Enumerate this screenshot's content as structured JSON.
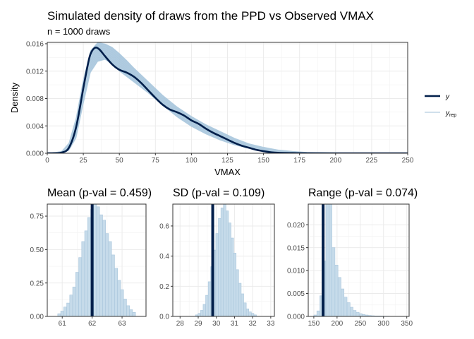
{
  "title": "Simulated density of draws from the PPD vs Observed VMAX",
  "subtitle": "n = 1000 draws",
  "colors": {
    "observed": "#011f4b",
    "replicated": "#b3cde0",
    "rep_density": "#9fbfd9",
    "hist_fill": "#c6dbea",
    "hist_edge": "#a9c6dc",
    "grid": "#ebebeb",
    "panel_border": "#333333",
    "axis_text": "#4d4d4d"
  },
  "chart_data": [
    {
      "type": "line",
      "name": "density_overlay",
      "xlabel": "VMAX",
      "ylabel": "Density",
      "xlim": [
        0,
        250
      ],
      "ylim": [
        0,
        0.0162
      ],
      "xticks": [
        0,
        25,
        50,
        75,
        100,
        125,
        150,
        175,
        200,
        225,
        250
      ],
      "xtick_labels": [
        "0",
        "25",
        "50",
        "75",
        "100",
        "125",
        "150",
        "175",
        "200",
        "225",
        "250"
      ],
      "yticks": [
        0,
        0.004,
        0.008,
        0.012,
        0.016
      ],
      "ytick_labels": [
        "0.000",
        "0.004",
        "0.008",
        "0.012",
        "0.016"
      ],
      "grid": true,
      "legend": {
        "position": "right",
        "items": [
          {
            "label": "y",
            "style": "observed"
          },
          {
            "label": "y",
            "sub": "rep",
            "style": "replicated"
          }
        ]
      },
      "observed": {
        "x": [
          0,
          5,
          10,
          15,
          20,
          25,
          28,
          30,
          33,
          36,
          40,
          45,
          50,
          55,
          60,
          65,
          70,
          75,
          80,
          85,
          90,
          95,
          100,
          105,
          110,
          115,
          120,
          125,
          130,
          135,
          140,
          145,
          150,
          155,
          160,
          170,
          180,
          200,
          225,
          250
        ],
        "y": [
          0.0,
          2e-05,
          0.0001,
          0.0008,
          0.0038,
          0.0095,
          0.0128,
          0.0145,
          0.0154,
          0.0152,
          0.0142,
          0.013,
          0.0122,
          0.0118,
          0.0112,
          0.0103,
          0.0092,
          0.0081,
          0.0071,
          0.0064,
          0.006,
          0.0055,
          0.0048,
          0.0043,
          0.0036,
          0.003,
          0.0025,
          0.002,
          0.0015,
          0.0011,
          0.0008,
          0.0005,
          0.0003,
          0.00015,
          7e-05,
          3e-05,
          1e-05,
          0.0,
          0.0,
          0.0
        ]
      },
      "replicated_band": {
        "x": [
          0,
          5,
          10,
          15,
          20,
          25,
          30,
          35,
          40,
          45,
          50,
          55,
          60,
          70,
          80,
          90,
          100,
          110,
          120,
          130,
          140,
          150,
          160,
          170,
          180,
          200,
          250
        ],
        "upper": [
          0.0,
          0.0001,
          0.0003,
          0.0015,
          0.0052,
          0.0108,
          0.015,
          0.0162,
          0.016,
          0.0155,
          0.0146,
          0.0136,
          0.0125,
          0.0105,
          0.0085,
          0.0068,
          0.0054,
          0.0042,
          0.0032,
          0.0022,
          0.0014,
          0.0009,
          0.0005,
          0.0003,
          0.00015,
          5e-05,
          0.0
        ],
        "lower": [
          0.0,
          0.0,
          5e-05,
          0.0004,
          0.0022,
          0.0072,
          0.0118,
          0.0134,
          0.0137,
          0.013,
          0.012,
          0.0112,
          0.0104,
          0.0088,
          0.007,
          0.0053,
          0.0039,
          0.0028,
          0.0019,
          0.0012,
          0.0007,
          0.0003,
          0.0001,
          3e-05,
          0.0,
          0.0,
          0.0
        ]
      }
    },
    {
      "type": "bar",
      "name": "hist_mean",
      "title": "Mean (p-val = 0.459)",
      "xlim": [
        60.5,
        63.8
      ],
      "ylim": [
        0,
        0.84
      ],
      "xticks": [
        61,
        62,
        63
      ],
      "xtick_labels": [
        "61",
        "62",
        "63"
      ],
      "yticks": [
        0,
        0.25,
        0.5,
        0.75
      ],
      "ytick_labels": [
        "0.00",
        "0.25",
        "0.50",
        "0.75"
      ],
      "grid": true,
      "bin_start": 60.85,
      "bin_width": 0.1,
      "values": [
        0.02,
        0.04,
        0.07,
        0.1,
        0.16,
        0.22,
        0.33,
        0.44,
        0.56,
        0.64,
        0.74,
        0.8,
        0.84,
        0.82,
        0.76,
        0.72,
        0.62,
        0.56,
        0.46,
        0.36,
        0.27,
        0.2,
        0.13,
        0.08,
        0.05,
        0.03
      ],
      "observed_value": 62.0
    },
    {
      "type": "bar",
      "name": "hist_sd",
      "title": "SD (p-val = 0.109)",
      "xlim": [
        27.6,
        33.2
      ],
      "ylim": [
        0,
        0.745
      ],
      "xticks": [
        28,
        29,
        30,
        31,
        32,
        33
      ],
      "xtick_labels": [
        "28",
        "29",
        "30",
        "31",
        "32",
        "33"
      ],
      "yticks": [
        0,
        0.2,
        0.4,
        0.6
      ],
      "ytick_labels": [
        "0.0",
        "0.2",
        "0.4",
        "0.6"
      ],
      "grid": true,
      "bin_start": 28.85,
      "bin_width": 0.14,
      "values": [
        0.01,
        0.02,
        0.04,
        0.08,
        0.14,
        0.23,
        0.33,
        0.44,
        0.55,
        0.65,
        0.72,
        0.75,
        0.7,
        0.62,
        0.52,
        0.42,
        0.31,
        0.22,
        0.15,
        0.09,
        0.05,
        0.03,
        0.02,
        0.01
      ],
      "observed_value": 29.8
    },
    {
      "type": "bar",
      "name": "hist_range",
      "title": "Range (p-val = 0.074)",
      "xlim": [
        138,
        355
      ],
      "ylim": [
        0,
        0.0245
      ],
      "xticks": [
        150,
        200,
        250,
        300,
        350
      ],
      "xtick_labels": [
        "150",
        "200",
        "250",
        "300",
        "350"
      ],
      "yticks": [
        0,
        0.005,
        0.01,
        0.015,
        0.02
      ],
      "ytick_labels": [
        "0.000",
        "0.005",
        "0.010",
        "0.015",
        "0.020"
      ],
      "grid": true,
      "bin_start": 150,
      "bin_width": 6.5,
      "values": [
        0.0003,
        0.0012,
        0.0045,
        0.0121,
        0.0245,
        0.0245,
        0.015,
        0.0112,
        0.0085,
        0.006,
        0.0042,
        0.003,
        0.002,
        0.0013,
        0.0009,
        0.0006,
        0.0004,
        0.0003,
        0.0002,
        0.00015,
        0.0001,
        0.0001,
        8e-05,
        5e-05,
        5e-05,
        3e-05,
        3e-05,
        2e-05,
        2e-05,
        1e-05
      ],
      "observed_value": 170
    }
  ]
}
